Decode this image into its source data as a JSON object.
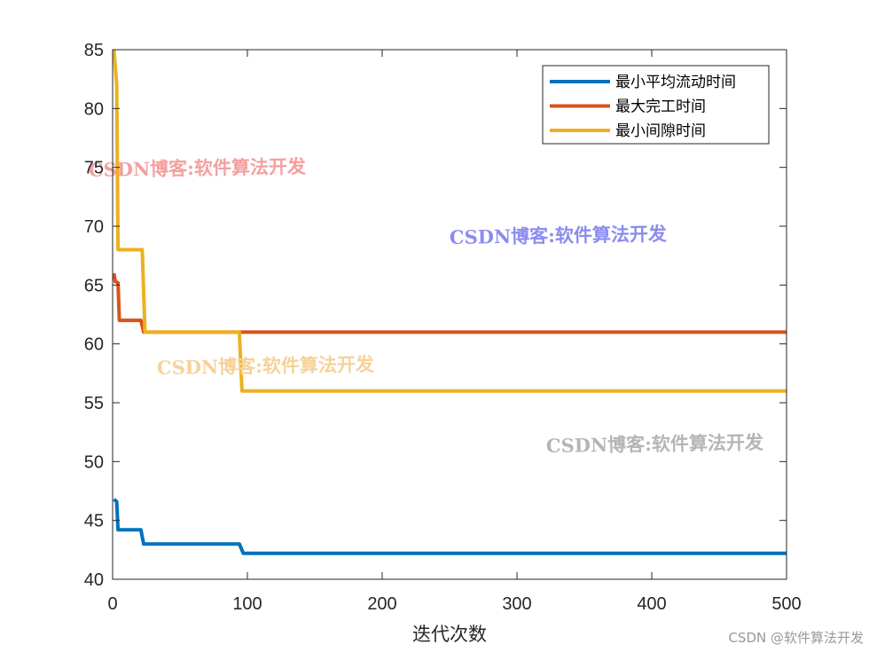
{
  "chart_data": {
    "type": "line",
    "title": "",
    "xlabel": "迭代次数",
    "ylabel": "",
    "xlim": [
      0,
      500
    ],
    "ylim": [
      40,
      85
    ],
    "xticks": [
      0,
      100,
      200,
      300,
      400,
      500
    ],
    "yticks": [
      40,
      45,
      50,
      55,
      60,
      65,
      70,
      75,
      80,
      85
    ],
    "grid": false,
    "legend_position": "top-right",
    "series": [
      {
        "name": "最小平均流动时间",
        "color": "#0072BD",
        "points": [
          [
            1,
            46.8
          ],
          [
            3,
            46.6
          ],
          [
            4,
            44.2
          ],
          [
            21,
            44.2
          ],
          [
            23,
            43.0
          ],
          [
            94,
            43.0
          ],
          [
            97,
            42.2
          ],
          [
            500,
            42.2
          ]
        ]
      },
      {
        "name": "最大完工时间",
        "color": "#D95319",
        "points": [
          [
            1,
            66
          ],
          [
            2,
            65.3
          ],
          [
            4,
            65.2
          ],
          [
            5,
            62
          ],
          [
            21,
            62
          ],
          [
            23,
            61
          ],
          [
            500,
            61
          ]
        ]
      },
      {
        "name": "最小间隙时间",
        "color": "#EDB120",
        "points": [
          [
            1,
            85
          ],
          [
            3,
            82
          ],
          [
            4,
            68
          ],
          [
            22,
            68
          ],
          [
            24,
            61
          ],
          [
            94,
            61
          ],
          [
            96,
            56
          ],
          [
            500,
            56
          ]
        ]
      }
    ]
  },
  "watermarks": [
    {
      "text": "CSDN博客:软件算法开发",
      "color": "#F4A0A0"
    },
    {
      "text": "CSDN博客:软件算法开发",
      "color": "#8C8CF0"
    },
    {
      "text": "CSDN博客:软件算法开发",
      "color": "#F5D29A"
    },
    {
      "text": "CSDN博客:软件算法开发",
      "color": "#B5B5B5"
    }
  ],
  "footer": "CSDN @软件算法开发"
}
